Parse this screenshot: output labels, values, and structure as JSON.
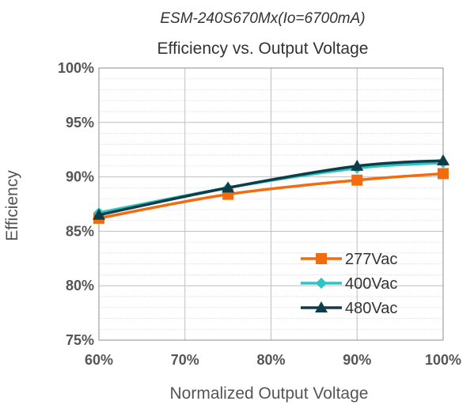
{
  "chart_data": {
    "type": "line",
    "subtitle": "ESM-240S670Mx(Io=6700mA)",
    "title": "Efficiency vs. Output Voltage",
    "xlabel": "Normalized Output Voltage",
    "ylabel": "Efficiency",
    "x": [
      60,
      75,
      90,
      100
    ],
    "xlim": [
      60,
      100
    ],
    "ylim": [
      75,
      100
    ],
    "xticks": [
      60,
      70,
      80,
      90,
      100
    ],
    "yticks": [
      75,
      80,
      85,
      90,
      95,
      100
    ],
    "x_tick_labels": [
      "60%",
      "70%",
      "80%",
      "90%",
      "100%"
    ],
    "y_tick_labels": [
      "75%",
      "80%",
      "85%",
      "90%",
      "95%",
      "100%"
    ],
    "grid": true,
    "legend_position": "bottom-right",
    "series": [
      {
        "name": "277Vac",
        "values": [
          86.2,
          88.4,
          89.7,
          90.3
        ],
        "color": "#F26B0F",
        "marker": "square"
      },
      {
        "name": "400Vac",
        "values": [
          86.7,
          89.0,
          90.8,
          91.3
        ],
        "color": "#2EC4C4",
        "marker": "diamond"
      },
      {
        "name": "480Vac",
        "values": [
          86.5,
          89.0,
          91.0,
          91.5
        ],
        "color": "#0E3D4A",
        "marker": "triangle"
      }
    ]
  }
}
